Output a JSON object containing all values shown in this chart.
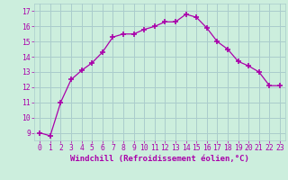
{
  "x": [
    0,
    1,
    2,
    3,
    4,
    5,
    6,
    7,
    8,
    9,
    10,
    11,
    12,
    13,
    14,
    15,
    16,
    17,
    18,
    19,
    20,
    21,
    22,
    23
  ],
  "y": [
    9.0,
    8.8,
    11.0,
    12.5,
    13.1,
    13.6,
    14.3,
    15.3,
    15.5,
    15.5,
    15.8,
    16.0,
    16.3,
    16.3,
    16.8,
    16.6,
    15.9,
    15.0,
    14.5,
    13.7,
    13.4,
    13.0,
    12.1,
    12.1
  ],
  "line_color": "#aa00aa",
  "marker": "+",
  "marker_size": 4,
  "marker_linewidth": 1.2,
  "background_color": "#cceedd",
  "grid_color": "#aacccc",
  "xlabel": "Windchill (Refroidissement éolien,°C)",
  "ylabel_ticks": [
    9,
    10,
    11,
    12,
    13,
    14,
    15,
    16,
    17
  ],
  "ylim": [
    8.5,
    17.5
  ],
  "xlim": [
    -0.5,
    23.5
  ],
  "xtick_labels": [
    "0",
    "1",
    "2",
    "3",
    "4",
    "5",
    "6",
    "7",
    "8",
    "9",
    "10",
    "11",
    "12",
    "13",
    "14",
    "15",
    "16",
    "17",
    "18",
    "19",
    "20",
    "21",
    "22",
    "23"
  ],
  "xlabel_color": "#aa00aa",
  "tick_color": "#aa00aa",
  "label_fontsize": 6.5,
  "tick_fontsize": 5.8
}
